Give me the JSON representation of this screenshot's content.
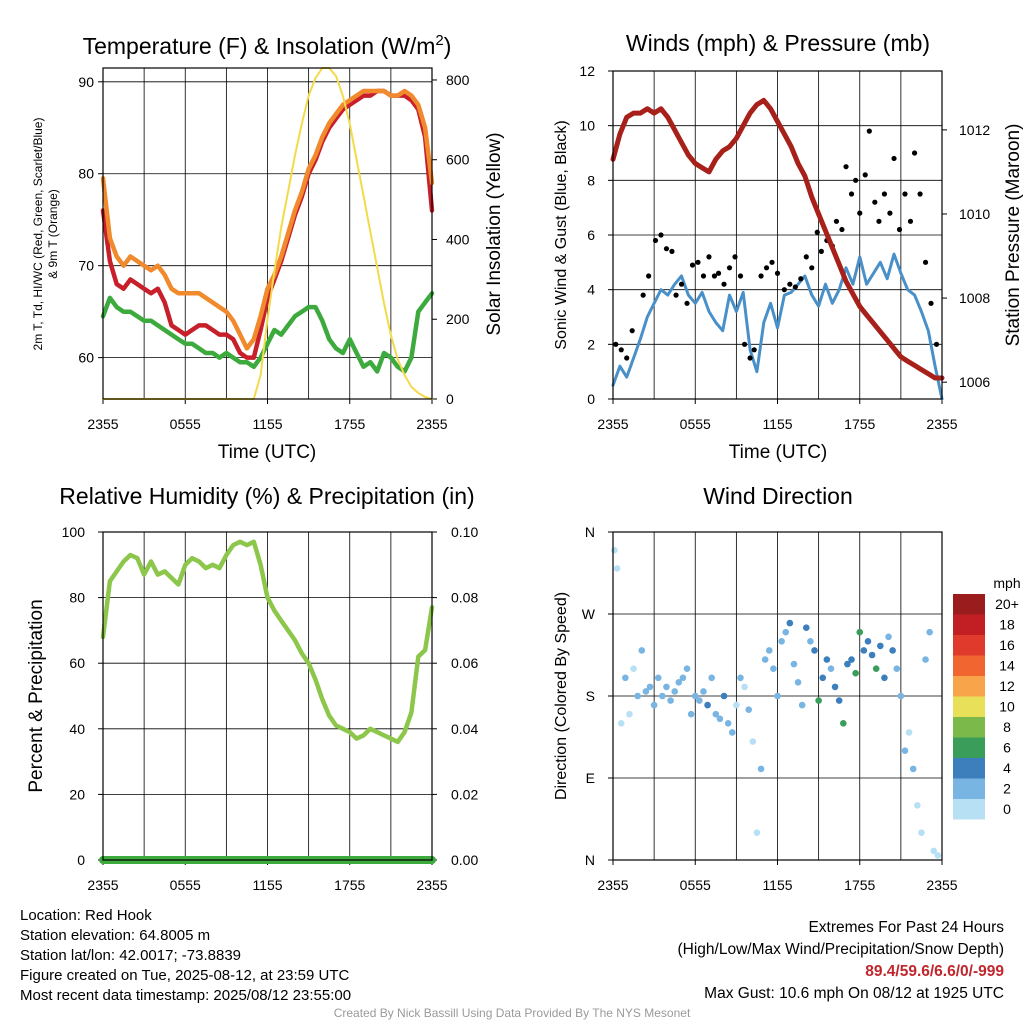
{
  "chart_data": [
    {
      "type": "line",
      "title": "Temperature (F) & Insolation (W/m²)",
      "xlabel": "Time (UTC)",
      "ylabel": "2m T, Td, HI/WC (Red, Green, Scarlet/Blue) & 9m T (Orange)",
      "ylabel_line1": "2m T, Td, HI/WC (Red, Green, Scarlet/Blue)",
      "ylabel_line2": "& 9m T (Orange)",
      "ylabel2": "Solar Insolation (Yellow)",
      "x_ticks": [
        "2355",
        "0555",
        "1155",
        "1755",
        "2355"
      ],
      "ylim": [
        55.5,
        91.5
      ],
      "y_ticks": [
        60,
        70,
        80,
        90
      ],
      "y2lim": [
        0,
        830
      ],
      "y2_ticks": [
        0,
        200,
        400,
        600,
        800
      ],
      "x_hours": [
        0,
        0.5,
        1,
        1.5,
        2,
        2.5,
        3,
        3.5,
        4,
        4.5,
        5,
        5.5,
        6,
        6.5,
        7,
        7.5,
        8,
        8.5,
        9,
        9.5,
        10,
        10.5,
        11,
        11.5,
        12,
        12.5,
        13,
        13.5,
        14,
        14.5,
        15,
        15.5,
        16,
        16.5,
        17,
        17.5,
        18,
        18.5,
        19,
        19.5,
        20,
        20.5,
        21,
        21.5,
        22,
        22.5,
        23,
        23.5,
        24
      ],
      "series": [
        {
          "name": "2m T",
          "color": "#c8202a",
          "values": [
            76,
            70.5,
            68,
            67.5,
            68.5,
            68,
            67.5,
            67,
            67.5,
            66,
            63.5,
            63,
            62.5,
            63,
            63.5,
            63.5,
            63,
            62.5,
            62.5,
            62,
            60.5,
            60,
            60,
            63,
            66.5,
            68.5,
            70.5,
            73,
            75.5,
            77.5,
            80,
            81.5,
            83.5,
            85,
            86,
            87,
            87.5,
            88,
            88.5,
            88.5,
            89,
            89,
            88.5,
            88.5,
            88.5,
            88,
            87,
            84,
            76
          ]
        },
        {
          "name": "9m T",
          "color": "#f08a2c",
          "values": [
            79.5,
            73,
            71,
            70,
            71,
            70.5,
            70,
            69.5,
            70,
            69,
            67.5,
            67,
            67,
            67,
            67,
            66.5,
            66,
            65.5,
            65,
            64,
            62.5,
            61,
            62,
            64.5,
            67.5,
            69,
            71,
            73.5,
            76,
            78,
            80.5,
            82,
            84,
            85.5,
            86.5,
            87.5,
            88,
            88.5,
            89,
            89,
            89,
            89,
            88.5,
            88.5,
            89,
            88.5,
            87.5,
            85,
            79
          ]
        },
        {
          "name": "Td",
          "color": "#3daa3d",
          "values": [
            64.5,
            66.5,
            65.5,
            65,
            65,
            64.5,
            64,
            64,
            63.5,
            63,
            62.5,
            62,
            61.5,
            61.5,
            61,
            60.5,
            60.5,
            60,
            60.5,
            60,
            59.5,
            59.5,
            59,
            60,
            61.5,
            63,
            62.5,
            63.5,
            64.5,
            65,
            65.5,
            65.5,
            64,
            62,
            61,
            60.5,
            62,
            60.5,
            59,
            59.5,
            58.5,
            60.5,
            60,
            59,
            58.5,
            60,
            65,
            66,
            67
          ]
        },
        {
          "name": "Solar Insolation",
          "color": "#f3da4a",
          "values": [
            0,
            0,
            0,
            0,
            0,
            0,
            0,
            0,
            0,
            0,
            0,
            0,
            0,
            0,
            0,
            0,
            0,
            0,
            0,
            0,
            0,
            0,
            0,
            60,
            200,
            320,
            430,
            520,
            610,
            690,
            760,
            805,
            830,
            830,
            810,
            760,
            690,
            600,
            510,
            420,
            330,
            240,
            160,
            100,
            60,
            30,
            15,
            5,
            0
          ]
        }
      ]
    },
    {
      "type": "scatter",
      "title": "Winds (mph) & Pressure (mb)",
      "xlabel": "Time (UTC)",
      "ylabel": "Sonic Wind & Gust (Blue, Black)",
      "ylabel2": "Station Pressure (Maroon)",
      "x_ticks": [
        "2355",
        "0555",
        "1155",
        "1755",
        "2355"
      ],
      "ylim": [
        0,
        12
      ],
      "y_ticks": [
        0,
        2,
        4,
        6,
        8,
        10,
        12
      ],
      "y2lim": [
        1005.6,
        1013.4
      ],
      "y2_ticks": [
        1006,
        1008,
        1010,
        1012
      ],
      "series": [
        {
          "name": "Station Pressure",
          "color": "#a8201a",
          "x": [
            0,
            0.5,
            1,
            1.5,
            2,
            2.5,
            3,
            3.5,
            4,
            4.5,
            5,
            5.5,
            6,
            6.5,
            7,
            7.5,
            8,
            8.5,
            9,
            9.5,
            10,
            10.5,
            11,
            11.5,
            12,
            12.5,
            13,
            13.5,
            14,
            14.5,
            15,
            15.5,
            16,
            16.5,
            17,
            17.5,
            18,
            18.5,
            19,
            19.5,
            20,
            20.5,
            21,
            21.5,
            22,
            22.5,
            23,
            23.5,
            24
          ],
          "values": [
            1011.3,
            1011.9,
            1012.3,
            1012.4,
            1012.4,
            1012.5,
            1012.4,
            1012.5,
            1012.3,
            1012.0,
            1011.7,
            1011.4,
            1011.2,
            1011.1,
            1011.0,
            1011.3,
            1011.5,
            1011.6,
            1011.8,
            1012.1,
            1012.4,
            1012.6,
            1012.7,
            1012.5,
            1012.2,
            1011.9,
            1011.6,
            1011.2,
            1010.9,
            1010.4,
            1010.0,
            1009.6,
            1009.2,
            1008.8,
            1008.4,
            1008.1,
            1007.8,
            1007.6,
            1007.4,
            1007.2,
            1007.0,
            1006.8,
            1006.6,
            1006.5,
            1006.4,
            1006.3,
            1006.2,
            1006.1,
            1006.1
          ]
        },
        {
          "name": "Sonic Wind",
          "color": "#4a90c8",
          "x": [
            0,
            0.5,
            1,
            1.5,
            2,
            2.5,
            3,
            3.5,
            4,
            4.5,
            5,
            5.5,
            6,
            6.5,
            7,
            7.5,
            8,
            8.5,
            9,
            9.5,
            10,
            10.5,
            11,
            11.5,
            12,
            12.5,
            13,
            13.5,
            14,
            14.5,
            15,
            15.5,
            16,
            16.5,
            17,
            17.5,
            18,
            18.5,
            19,
            19.5,
            20,
            20.5,
            21,
            21.5,
            22,
            22.5,
            23,
            23.5,
            24
          ],
          "values": [
            0.5,
            1.2,
            0.8,
            1.5,
            2.2,
            3,
            3.5,
            4,
            3.8,
            4.2,
            4.5,
            3.8,
            3.5,
            3.9,
            3.2,
            2.8,
            2.5,
            3.8,
            3.2,
            3.9,
            1.8,
            1,
            2.8,
            3.5,
            2.6,
            3.8,
            3.9,
            4.2,
            4.5,
            3.8,
            3.4,
            4.2,
            3.5,
            4,
            4.8,
            4.2,
            5.2,
            4.2,
            4.6,
            5,
            4.4,
            5.3,
            4.6,
            4,
            3.8,
            3.2,
            2.5,
            1.2,
            0
          ]
        },
        {
          "name": "Gust",
          "color": "#000000",
          "x": [
            0.2,
            0.6,
            1,
            1.4,
            2.2,
            2.6,
            3.1,
            3.5,
            3.9,
            4.3,
            4.6,
            5,
            5.4,
            5.8,
            6.2,
            6.6,
            7,
            7.4,
            7.7,
            8.1,
            8.5,
            8.9,
            9.3,
            9.6,
            10,
            10.3,
            10.8,
            11.2,
            11.6,
            12,
            12.5,
            12.9,
            13.3,
            13.7,
            14.1,
            14.5,
            14.9,
            15.2,
            15.6,
            16,
            16.3,
            16.7,
            17,
            17.4,
            17.7,
            18,
            18.4,
            18.7,
            19.1,
            19.4,
            19.8,
            20.2,
            20.5,
            20.9,
            21.3,
            21.7,
            22,
            22.4,
            22.8,
            23.2,
            23.6
          ],
          "values": [
            2,
            1.8,
            1.5,
            2.5,
            3.8,
            4.5,
            5.8,
            6,
            5.5,
            5.4,
            3.8,
            4.2,
            3.5,
            4.9,
            5,
            4.5,
            5.2,
            4.5,
            4.6,
            4.2,
            4.8,
            5.2,
            4.5,
            2,
            1.5,
            1.8,
            4.5,
            4.8,
            5,
            4.6,
            4,
            4.2,
            4.1,
            4.4,
            5.2,
            4.8,
            6.1,
            5.4,
            5.8,
            5.6,
            6.5,
            6.2,
            8.5,
            7.5,
            8,
            6.8,
            8.2,
            9.8,
            7.2,
            6.5,
            7.5,
            6.8,
            8.8,
            6.2,
            7.5,
            6.5,
            9,
            7.5,
            5,
            3.5,
            2
          ]
        }
      ]
    },
    {
      "type": "line",
      "title": "Relative Humidity (%) & Precipitation (in)",
      "ylabel": "Percent & Precipitation",
      "x_ticks": [
        "2355",
        "0555",
        "1155",
        "1755",
        "2355"
      ],
      "ylim": [
        0,
        100
      ],
      "y_ticks": [
        0,
        20,
        40,
        60,
        80,
        100
      ],
      "y2lim": [
        0,
        0.1
      ],
      "y2_ticks": [
        "0.00",
        "0.02",
        "0.04",
        "0.06",
        "0.08",
        "0.10"
      ],
      "x_hours": [
        0,
        0.5,
        1,
        1.5,
        2,
        2.5,
        3,
        3.5,
        4,
        4.5,
        5,
        5.5,
        6,
        6.5,
        7,
        7.5,
        8,
        8.5,
        9,
        9.5,
        10,
        10.5,
        11,
        11.5,
        12,
        12.5,
        13,
        13.5,
        14,
        14.5,
        15,
        15.5,
        16,
        16.5,
        17,
        17.5,
        18,
        18.5,
        19,
        19.5,
        20,
        20.5,
        21,
        21.5,
        22,
        22.5,
        23,
        23.5,
        24
      ],
      "series": [
        {
          "name": "Relative Humidity",
          "color": "#8cc64a",
          "values": [
            68,
            85,
            88,
            91,
            93,
            92,
            87,
            91,
            87,
            88,
            86,
            84,
            90,
            92,
            91,
            89,
            90,
            89,
            93,
            96,
            97,
            96,
            97,
            90,
            80,
            76,
            73,
            70,
            67,
            63,
            60,
            55,
            49,
            44,
            41,
            40,
            39,
            37,
            38,
            40,
            39,
            38,
            37,
            36,
            39,
            45,
            62,
            64,
            77
          ]
        },
        {
          "name": "Precipitation",
          "color": "#3daa3d",
          "values": [
            0,
            0,
            0,
            0,
            0,
            0,
            0,
            0,
            0,
            0,
            0,
            0,
            0,
            0,
            0,
            0,
            0,
            0,
            0,
            0,
            0,
            0,
            0,
            0,
            0,
            0,
            0,
            0,
            0,
            0,
            0,
            0,
            0,
            0,
            0,
            0,
            0,
            0,
            0,
            0,
            0,
            0,
            0,
            0,
            0,
            0,
            0,
            0,
            0
          ]
        }
      ]
    },
    {
      "type": "scatter",
      "title": "Wind Direction",
      "ylabel": "Direction (Colored By Speed)",
      "x_ticks": [
        "2355",
        "0555",
        "1155",
        "1755",
        "2355"
      ],
      "y_ticks": [
        "N",
        "E",
        "S",
        "W",
        "N"
      ],
      "ylim": [
        0,
        360
      ],
      "colorbar_unit": "mph",
      "colorbar_labels": [
        "20+",
        "18",
        "16",
        "14",
        "12",
        "10",
        "8",
        "6",
        "4",
        "2",
        "0"
      ],
      "colorbar_colors": [
        "#9b1c1c",
        "#c21f25",
        "#e03a2c",
        "#f06530",
        "#f8a44a",
        "#e9e05a",
        "#7ab94a",
        "#3a9e5a",
        "#3d7fbd",
        "#79b5e3",
        "#b8e0f5"
      ],
      "x": [
        0.1,
        0.3,
        0.6,
        0.9,
        1.2,
        1.5,
        1.8,
        2.1,
        2.4,
        2.7,
        3,
        3.3,
        3.6,
        3.9,
        4.2,
        4.5,
        4.8,
        5.1,
        5.4,
        5.7,
        6,
        6.3,
        6.6,
        6.9,
        7.2,
        7.5,
        7.8,
        8.1,
        8.4,
        8.7,
        9,
        9.3,
        9.6,
        9.9,
        10.2,
        10.5,
        10.8,
        11.1,
        11.4,
        11.7,
        12,
        12.3,
        12.6,
        12.9,
        13.2,
        13.5,
        13.8,
        14.1,
        14.4,
        14.7,
        15,
        15.3,
        15.6,
        15.9,
        16.2,
        16.5,
        16.8,
        17.1,
        17.4,
        17.7,
        18,
        18.3,
        18.6,
        18.9,
        19.2,
        19.5,
        19.8,
        20.1,
        20.4,
        20.7,
        21,
        21.3,
        21.6,
        21.9,
        22.2,
        22.5,
        22.8,
        23.1,
        23.4,
        23.7
      ],
      "values": [
        340,
        320,
        150,
        200,
        160,
        210,
        180,
        230,
        185,
        190,
        170,
        200,
        180,
        190,
        175,
        185,
        195,
        200,
        210,
        160,
        180,
        175,
        185,
        170,
        200,
        160,
        155,
        180,
        150,
        140,
        170,
        200,
        190,
        165,
        130,
        30,
        100,
        220,
        230,
        210,
        180,
        240,
        250,
        260,
        215,
        195,
        170,
        255,
        240,
        230,
        175,
        200,
        220,
        210,
        190,
        175,
        150,
        215,
        220,
        205,
        250,
        230,
        240,
        225,
        210,
        235,
        200,
        245,
        230,
        210,
        180,
        120,
        140,
        100,
        60,
        30,
        220,
        250,
        10,
        5
      ],
      "speed": [
        1,
        1,
        1,
        2,
        1,
        1,
        2,
        3,
        2,
        3,
        2,
        3,
        3,
        2,
        3,
        2,
        3,
        3,
        2,
        3,
        3,
        2,
        3,
        4,
        2,
        3,
        2,
        4,
        3,
        2,
        1,
        2,
        1,
        2,
        1,
        1,
        2,
        3,
        2,
        2,
        3,
        2,
        3,
        4,
        2,
        3,
        3,
        4,
        3,
        4,
        7,
        5,
        4,
        3,
        4,
        5,
        6,
        4,
        5,
        6,
        7,
        5,
        4,
        5,
        6,
        5,
        4,
        3,
        4,
        3,
        2,
        2,
        1,
        2,
        1,
        1,
        2,
        3,
        1,
        1
      ]
    }
  ],
  "footer": {
    "location": "Location: Red Hook",
    "elevation": "Station elevation: 64.8005 m",
    "latlon": "Station lat/lon: 42.0017; -73.8839",
    "created": "Figure created on Tue, 2025-08-12, at 23:59 UTC",
    "recent": "Most recent data timestamp: 2025/08/12 23:55:00"
  },
  "extremes": {
    "title": "Extremes For Past 24 Hours",
    "subtitle": "(High/Low/Max Wind/Precipitation/Snow Depth)",
    "values": "89.4/59.6/6.6/0/-999",
    "gust": "Max Gust: 10.6 mph On 08/12 at 1925 UTC"
  },
  "credit": "Created By Nick Bassill Using Data Provided By The NYS Mesonet"
}
